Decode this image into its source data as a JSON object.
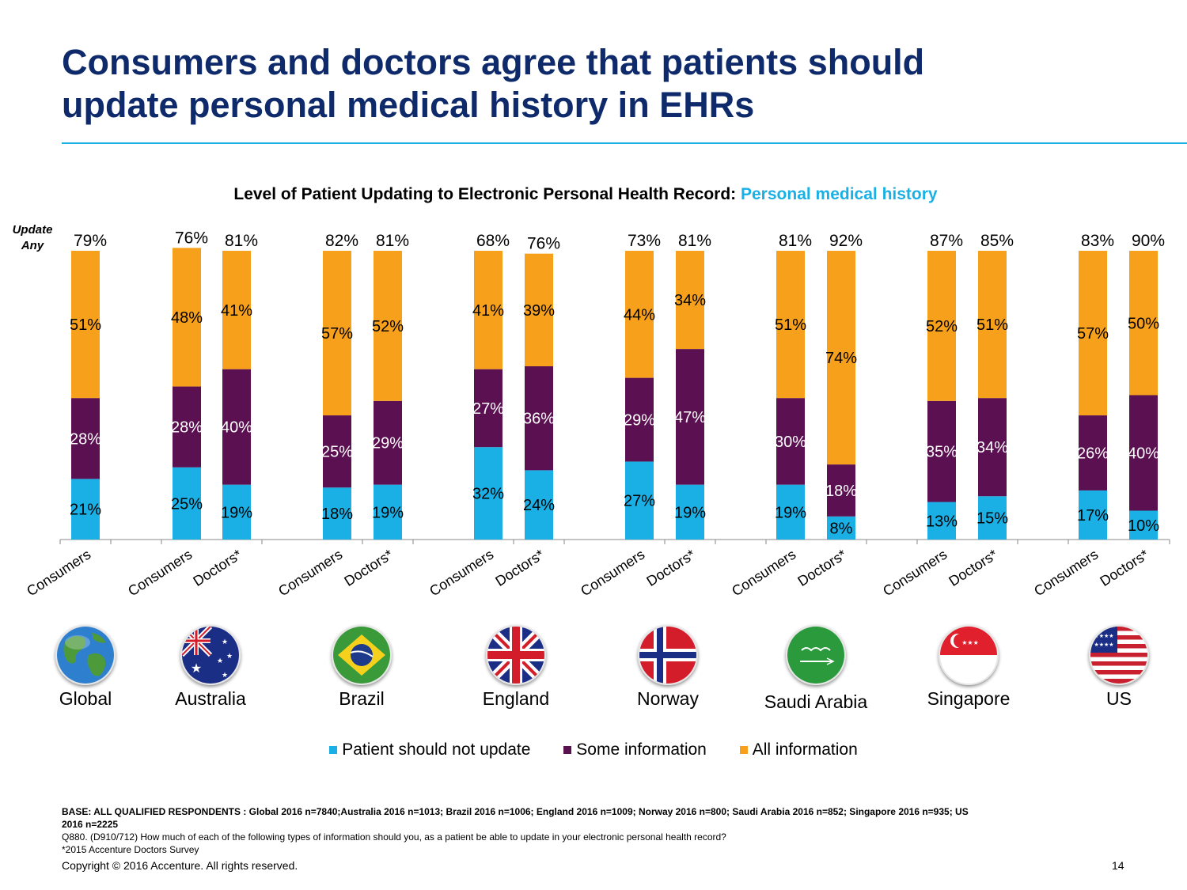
{
  "slide": {
    "title_line1": "Consumers and doctors agree that patients should",
    "title_line2": "update personal medical history in EHRs",
    "chart_title_main": "Level of Patient Updating to Electronic Personal Health Record:",
    "chart_title_highlight": "Personal medical history",
    "update_any_line1": "Update",
    "update_any_line2": "Any",
    "notes": {
      "base": "BASE: ALL QUALIFIED RESPONDENTS : Global 2016 n=7840;Australia 2016 n=1013; Brazil  2016 n=1006; England  2016 n=1009; Norway  2016 n=800; Saudi Arabia 2016 n=852; Singapore  2016 n=935; US 2016 n=2225",
      "question": "Q880. (D910/712)  How much of each of the following types of information should you, as a patient be able to update in your electronic personal health record?",
      "footnote": "*2015 Accenture Doctors Survey"
    },
    "copyright": "Copyright © 2016 Accenture. All rights reserved.",
    "page_number": "14"
  },
  "countries": [
    {
      "name": "Global",
      "icon": "globe-icon"
    },
    {
      "name": "Australia",
      "icon": "australia-flag-icon"
    },
    {
      "name": "Brazil",
      "icon": "brazil-flag-icon"
    },
    {
      "name": "England",
      "icon": "uk-flag-icon"
    },
    {
      "name": "Norway",
      "icon": "norway-flag-icon"
    },
    {
      "name": "Saudi Arabia",
      "icon": "saudi-arabia-flag-icon"
    },
    {
      "name": "Singapore",
      "icon": "singapore-flag-icon"
    },
    {
      "name": "US",
      "icon": "us-flag-icon"
    }
  ],
  "chart_data": {
    "type": "bar",
    "stacked": true,
    "title": "Level of Patient Updating to Electronic Personal Health Record: Personal medical history",
    "categories": [
      "Global Consumers",
      "Australia Consumers",
      "Australia Doctors*",
      "Brazil Consumers",
      "Brazil Doctors*",
      "England Consumers",
      "England Doctors*",
      "Norway Consumers",
      "Norway Doctors*",
      "Saudi Arabia Consumers",
      "Saudi Arabia Doctors*",
      "Singapore Consumers",
      "Singapore Doctors*",
      "US Consumers",
      "US Doctors*"
    ],
    "tick_labels": [
      "Consumers",
      "Consumers",
      "Doctors*",
      "Consumers",
      "Doctors*",
      "Consumers",
      "Doctors*",
      "Consumers",
      "Doctors*",
      "Consumers",
      "Doctors*",
      "Consumers",
      "Doctors*",
      "Consumers",
      "Doctors*"
    ],
    "series": [
      {
        "name": "Patient should not update",
        "color": "#1bb0e5",
        "values": [
          21,
          25,
          19,
          18,
          19,
          32,
          24,
          27,
          19,
          19,
          8,
          13,
          15,
          17,
          10
        ]
      },
      {
        "name": "Some information",
        "color": "#5b1151",
        "values": [
          28,
          28,
          40,
          25,
          29,
          27,
          36,
          29,
          47,
          30,
          18,
          35,
          34,
          26,
          40
        ]
      },
      {
        "name": "All information",
        "color": "#f7a01c",
        "values": [
          51,
          48,
          41,
          57,
          52,
          41,
          39,
          44,
          34,
          51,
          74,
          52,
          51,
          57,
          50
        ]
      }
    ],
    "update_any": [
      79,
      76,
      81,
      82,
      81,
      68,
      76,
      73,
      81,
      81,
      92,
      87,
      85,
      83,
      90
    ],
    "ylim": [
      0,
      100
    ],
    "legend_position": "bottom",
    "grid": false
  }
}
